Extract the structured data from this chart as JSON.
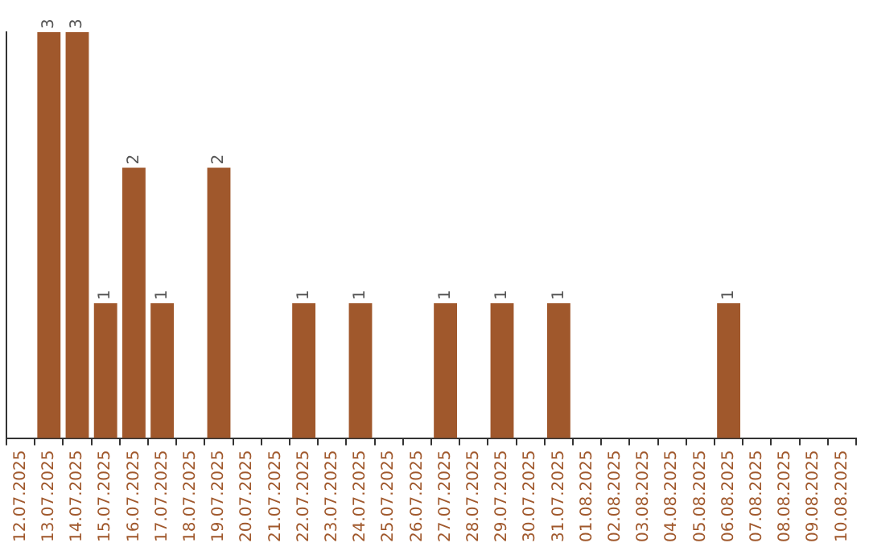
{
  "chart_data": {
    "type": "bar",
    "categories": [
      "12.07.2025",
      "13.07.2025",
      "14.07.2025",
      "15.07.2025",
      "16.07.2025",
      "17.07.2025",
      "18.07.2025",
      "19.07.2025",
      "20.07.2025",
      "21.07.2025",
      "22.07.2025",
      "23.07.2025",
      "24.07.2025",
      "25.07.2025",
      "26.07.2025",
      "27.07.2025",
      "28.07.2025",
      "29.07.2025",
      "30.07.2025",
      "31.07.2025",
      "01.08.2025",
      "02.08.2025",
      "03.08.2025",
      "04.08.2025",
      "05.08.2025",
      "06.08.2025",
      "07.08.2025",
      "08.08.2025",
      "09.08.2025",
      "10.08.2025"
    ],
    "values": [
      0,
      3,
      3,
      1,
      2,
      1,
      0,
      2,
      0,
      0,
      1,
      0,
      1,
      0,
      0,
      1,
      0,
      1,
      0,
      1,
      0,
      0,
      0,
      0,
      0,
      1,
      0,
      0,
      0,
      0
    ],
    "value_labels": [
      null,
      "3",
      "3",
      "1",
      "2",
      "1",
      null,
      "2",
      null,
      null,
      "1",
      null,
      "1",
      null,
      null,
      "1",
      null,
      "1",
      null,
      "1",
      null,
      null,
      null,
      null,
      null,
      "1",
      null,
      null,
      null,
      null
    ],
    "color": "#a0582c",
    "grid": false,
    "tick_labels": "x"
  }
}
